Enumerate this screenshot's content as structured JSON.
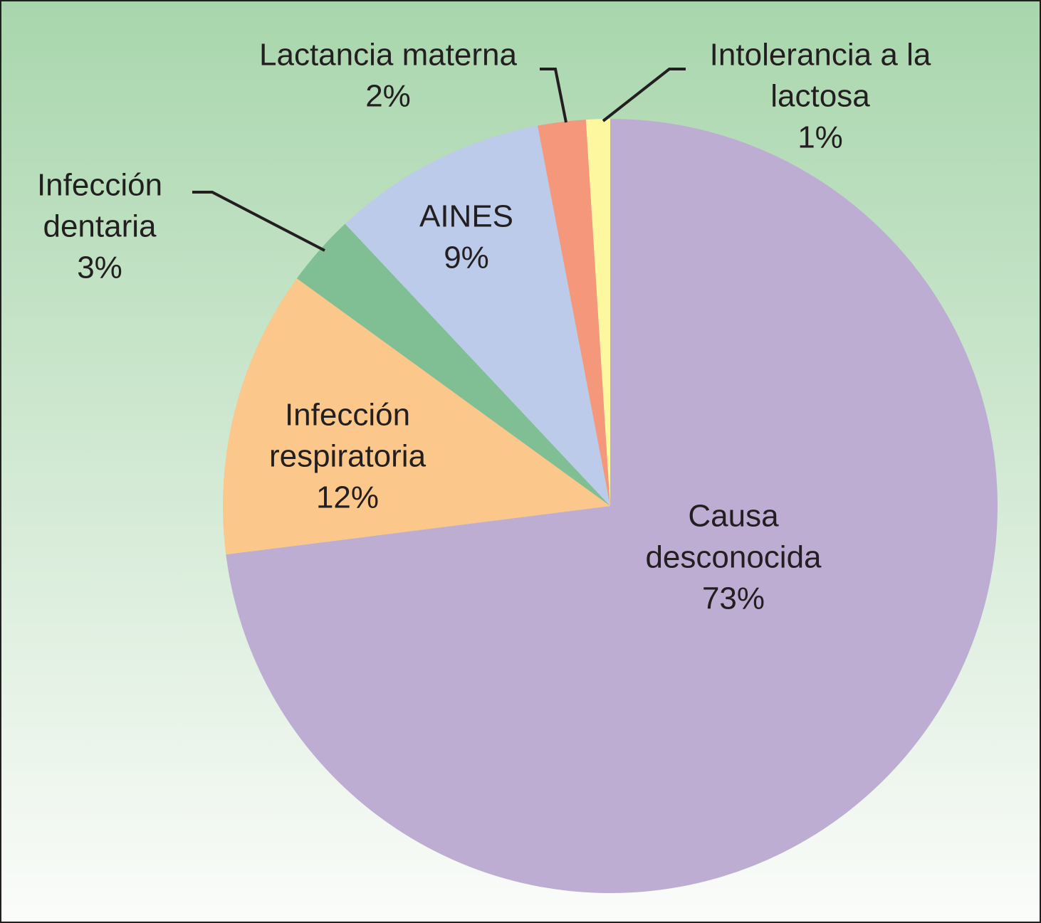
{
  "chart_data": {
    "type": "pie",
    "categories": [
      [
        "Causa",
        "desconocida"
      ],
      [
        "Infección",
        "respiratoria"
      ],
      [
        "Infección",
        "dentaria"
      ],
      [
        "AINES"
      ],
      [
        "Lactancia materna"
      ],
      [
        "Intolerancia a la",
        "lactosa"
      ]
    ],
    "values": [
      73,
      12,
      3,
      9,
      2,
      1
    ],
    "value_labels": [
      "73%",
      "12%",
      "3%",
      "9%",
      "2%",
      "1%"
    ],
    "colors": [
      "#bdadd3",
      "#fbc78a",
      "#7fbf93",
      "#bccbea",
      "#f4977b",
      "#fdf7a0"
    ]
  }
}
